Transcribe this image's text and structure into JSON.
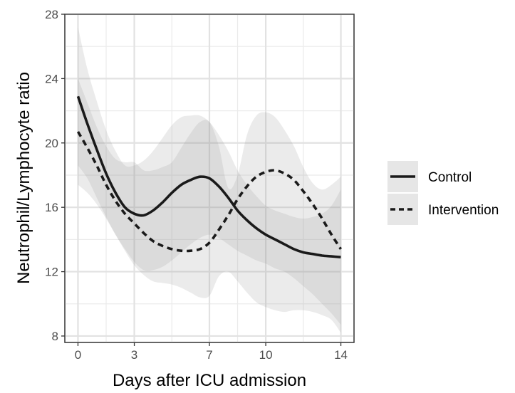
{
  "chart_data": {
    "type": "line",
    "title": "",
    "xlabel": "Days after ICU admission",
    "ylabel": "Neutrophil/Lymphocyte ratio",
    "xlim": [
      -0.7,
      14.7
    ],
    "ylim": [
      7.6,
      28.0
    ],
    "xticks": [
      0,
      3,
      7,
      10,
      14
    ],
    "yticks": [
      8,
      12,
      16,
      20,
      24,
      28
    ],
    "grid": true,
    "legend_position": "right",
    "series": [
      {
        "name": "Control",
        "linestyle": "solid",
        "color": "#1a1a1a",
        "x": [
          0,
          0.5,
          1,
          1.5,
          2,
          2.5,
          3,
          3.5,
          4,
          4.5,
          5,
          5.5,
          6,
          6.5,
          7,
          7.5,
          8,
          8.5,
          9,
          9.5,
          10,
          10.5,
          11,
          11.5,
          12,
          12.5,
          13,
          13.5,
          14
        ],
        "y": [
          22.9,
          21.2,
          19.6,
          18.1,
          16.9,
          16.0,
          15.6,
          15.5,
          15.8,
          16.3,
          16.9,
          17.4,
          17.7,
          17.9,
          17.8,
          17.3,
          16.6,
          15.8,
          15.2,
          14.7,
          14.3,
          14.0,
          13.7,
          13.4,
          13.2,
          13.1,
          13.0,
          12.95,
          12.9
        ],
        "ci_lower": [
          18.6,
          17.8,
          16.6,
          15.4,
          14.3,
          13.4,
          12.6,
          12.1,
          12.1,
          12.3,
          12.7,
          13.2,
          13.7,
          14.1,
          14.3,
          14.1,
          13.7,
          13.3,
          13.0,
          12.7,
          12.5,
          12.2,
          12.0,
          11.6,
          11.1,
          10.6,
          10.0,
          9.4,
          8.7
        ],
        "ci_upper": [
          27.2,
          24.6,
          22.6,
          20.8,
          19.5,
          18.6,
          18.6,
          18.9,
          19.5,
          20.3,
          21.1,
          21.6,
          21.7,
          21.7,
          21.3,
          20.5,
          19.5,
          18.3,
          17.4,
          16.7,
          16.1,
          15.8,
          15.6,
          15.4,
          15.3,
          15.4,
          15.6,
          16.1,
          17.1
        ]
      },
      {
        "name": "Intervention",
        "linestyle": "dashed",
        "color": "#1a1a1a",
        "x": [
          0,
          0.5,
          1,
          1.5,
          2,
          2.5,
          3,
          3.5,
          4,
          4.5,
          5,
          5.5,
          6,
          6.5,
          7,
          7.5,
          8,
          8.5,
          9,
          9.5,
          10,
          10.5,
          11,
          11.5,
          12,
          12.5,
          13,
          13.5,
          14
        ],
        "y": [
          20.7,
          19.7,
          18.6,
          17.4,
          16.4,
          15.6,
          15.0,
          14.4,
          13.9,
          13.6,
          13.4,
          13.3,
          13.3,
          13.4,
          13.8,
          14.6,
          15.5,
          16.5,
          17.3,
          17.9,
          18.2,
          18.3,
          18.1,
          17.7,
          17.0,
          16.2,
          15.3,
          14.3,
          13.4
        ],
        "ci_lower": [
          17.4,
          16.9,
          16.2,
          15.3,
          14.3,
          13.3,
          12.4,
          11.8,
          11.4,
          11.3,
          11.2,
          11.0,
          10.7,
          10.4,
          10.5,
          11.7,
          12.0,
          11.4,
          10.7,
          10.1,
          9.8,
          9.6,
          9.5,
          9.6,
          9.6,
          9.5,
          9.3,
          9.0,
          8.2
        ],
        "ci_upper": [
          24.0,
          22.5,
          21.0,
          19.8,
          19.0,
          18.8,
          18.8,
          18.3,
          18.3,
          18.5,
          18.8,
          19.7,
          20.6,
          21.3,
          21.3,
          19.8,
          17.2,
          18.0,
          20.5,
          21.7,
          21.9,
          21.6,
          20.8,
          19.8,
          18.5,
          17.5,
          17.1,
          17.4,
          17.9
        ]
      }
    ]
  }
}
